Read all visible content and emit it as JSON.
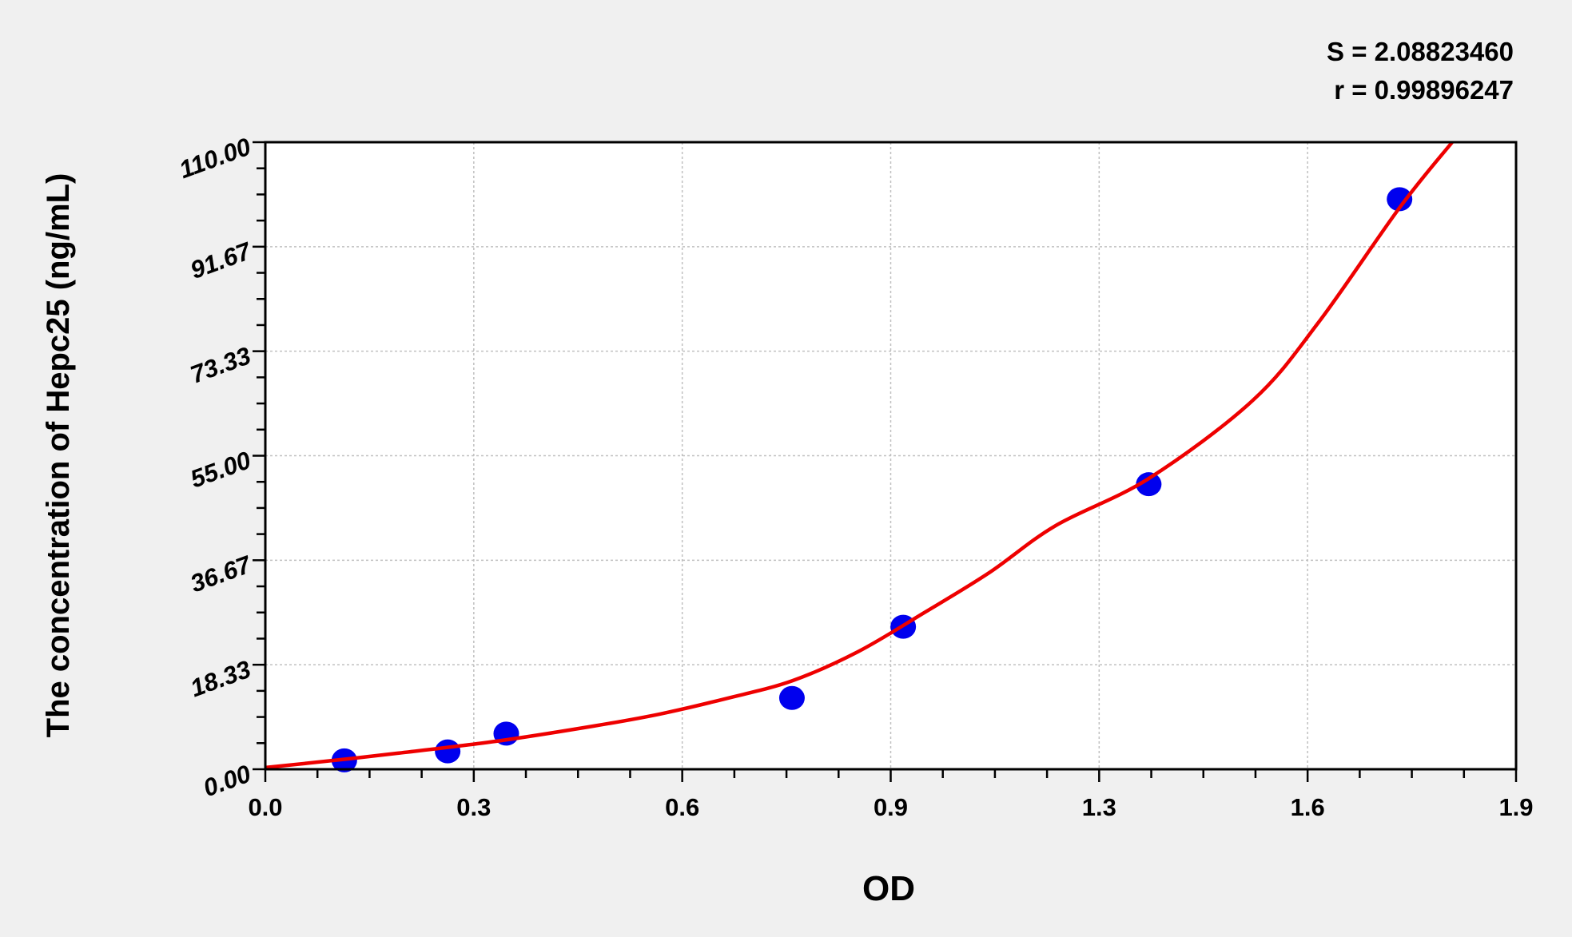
{
  "chart_data": {
    "type": "scatter",
    "xlabel": "OD",
    "ylabel": "The concentration of Hepc25 (ng/mL)",
    "xlim": [
      0,
      1.9
    ],
    "ylim": [
      0,
      110
    ],
    "x_ticks": [
      "0.0",
      "0.3",
      "0.6",
      "0.9",
      "1.3",
      "1.6",
      "1.9"
    ],
    "y_ticks": [
      "0.00",
      "18.33",
      "36.67",
      "55.00",
      "73.33",
      "91.67",
      "110.00"
    ],
    "grid": true,
    "annotations": [
      "S = 2.08823460",
      "r = 0.99896247"
    ],
    "points": {
      "x": [
        0.12,
        0.277,
        0.366,
        0.8,
        0.969,
        1.342,
        1.723
      ],
      "y": [
        1.56,
        3.13,
        6.25,
        12.5,
        25,
        50,
        100
      ]
    },
    "fit_curve": {
      "x": [
        0,
        0.1,
        0.2,
        0.35,
        0.5,
        0.6,
        0.7,
        0.8,
        0.9,
        1.0,
        1.1,
        1.2,
        1.342,
        1.5,
        1.6,
        1.723,
        1.803
      ],
      "y": [
        0.3,
        1.5,
        2.8,
        4.9,
        7.6,
        9.7,
        12.4,
        15.5,
        20.6,
        27.4,
        34.5,
        42.7,
        51.0,
        64.7,
        78.4,
        98.5,
        110
      ]
    },
    "colors": {
      "points": "#0000ee",
      "curve": "#ee0000",
      "background": "#f0f0f0",
      "plot_area": "#ffffff",
      "grid": "#c0c0c0"
    }
  }
}
